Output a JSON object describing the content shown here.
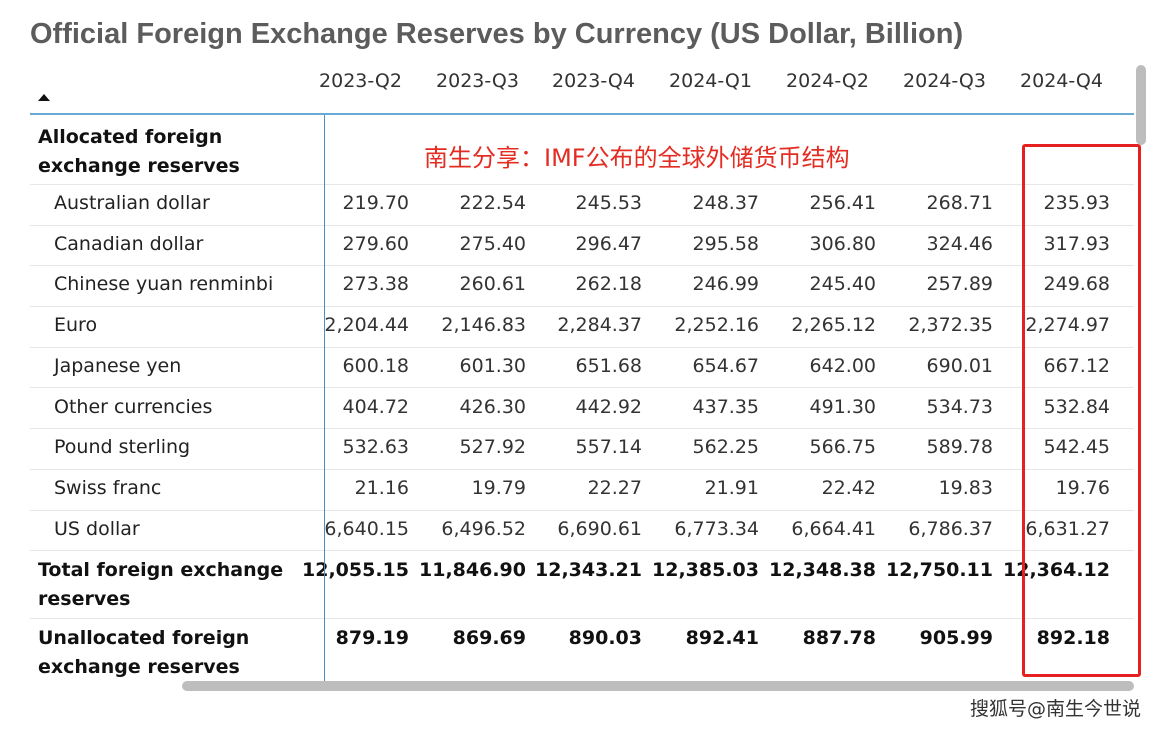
{
  "title": "Official Foreign Exchange Reserves by Currency (US Dollar, Billion)",
  "columns": [
    "2023-Q2",
    "2023-Q3",
    "2023-Q4",
    "2024-Q1",
    "2024-Q2",
    "2024-Q3",
    "2024-Q4"
  ],
  "section_header": "Allocated foreign exchange reserves",
  "rows": [
    {
      "label": "Australian dollar",
      "values": [
        "219.70",
        "222.54",
        "245.53",
        "248.37",
        "256.41",
        "268.71",
        "235.93"
      ]
    },
    {
      "label": "Canadian dollar",
      "values": [
        "279.60",
        "275.40",
        "296.47",
        "295.58",
        "306.80",
        "324.46",
        "317.93"
      ]
    },
    {
      "label": "Chinese yuan renminbi",
      "values": [
        "273.38",
        "260.61",
        "262.18",
        "246.99",
        "245.40",
        "257.89",
        "249.68"
      ]
    },
    {
      "label": "Euro",
      "values": [
        "2,204.44",
        "2,146.83",
        "2,284.37",
        "2,252.16",
        "2,265.12",
        "2,372.35",
        "2,274.97"
      ]
    },
    {
      "label": "Japanese yen",
      "values": [
        "600.18",
        "601.30",
        "651.68",
        "654.67",
        "642.00",
        "690.01",
        "667.12"
      ]
    },
    {
      "label": "Other currencies",
      "values": [
        "404.72",
        "426.30",
        "442.92",
        "437.35",
        "491.30",
        "534.73",
        "532.84"
      ]
    },
    {
      "label": "Pound sterling",
      "values": [
        "532.63",
        "527.92",
        "557.14",
        "562.25",
        "566.75",
        "589.78",
        "542.45"
      ]
    },
    {
      "label": "Swiss franc",
      "values": [
        "21.16",
        "19.79",
        "22.27",
        "21.91",
        "22.42",
        "19.83",
        "19.76"
      ]
    },
    {
      "label": "US dollar",
      "values": [
        "6,640.15",
        "6,496.52",
        "6,690.61",
        "6,773.34",
        "6,664.41",
        "6,786.37",
        "6,631.27"
      ]
    }
  ],
  "totals": [
    {
      "label": "Total foreign exchange reserves",
      "values": [
        "12,055.15",
        "11,846.90",
        "12,343.21",
        "12,385.03",
        "12,348.38",
        "12,750.11",
        "12,364.12"
      ]
    },
    {
      "label": "Unallocated foreign exchange reserves",
      "values": [
        "879.19",
        "869.69",
        "890.03",
        "892.41",
        "887.78",
        "905.99",
        "892.18"
      ]
    }
  ],
  "annotation": "南生分享：IMF公布的全球外储货币结构",
  "credit": "搜狐号@南生今世说",
  "colors": {
    "accent_line": "#4a90c8",
    "highlight_box": "#e62020",
    "annotation_text": "#e32d22",
    "title_text": "#5c5c5c"
  }
}
